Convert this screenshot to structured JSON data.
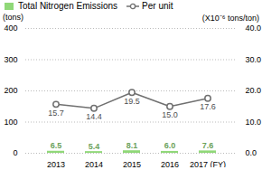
{
  "chart_data": {
    "type": "bar",
    "categories": [
      "2013",
      "2014",
      "2015",
      "2016",
      "2017 (FY)"
    ],
    "series": [
      {
        "name": "Total Nitrogen Emissions",
        "type": "bar",
        "color": "#90d878",
        "values": [
          6.5,
          5.4,
          8.1,
          6.0,
          7.6
        ],
        "value_labels": [
          "6.5",
          "5.4",
          "8.1",
          "6.0",
          "7.6"
        ]
      },
      {
        "name": "Per unit",
        "type": "line",
        "axis": "y2",
        "color": "#707070",
        "marker": "circle",
        "values": [
          15.7,
          14.4,
          19.5,
          15.0,
          17.6
        ],
        "value_labels": [
          "15.7",
          "14.4",
          "19.5",
          "15.0",
          "17.6"
        ]
      }
    ],
    "ylabel": "(tons)",
    "y2label": "(X10⁻⁶ tons/ton)",
    "ylim": [
      0,
      400
    ],
    "yticks": [
      0,
      100,
      200,
      300,
      400
    ],
    "y2lim": [
      0,
      40.0
    ],
    "y2ticks": [
      {
        "value": 0,
        "label": "0.0"
      },
      {
        "value": 10,
        "label": "10.0"
      },
      {
        "value": 20,
        "label": "20.0"
      },
      {
        "value": 30,
        "label": "30.0"
      },
      {
        "value": 40,
        "label": "40.0"
      }
    ],
    "grid": true,
    "legend": "top",
    "data_labels": true
  }
}
